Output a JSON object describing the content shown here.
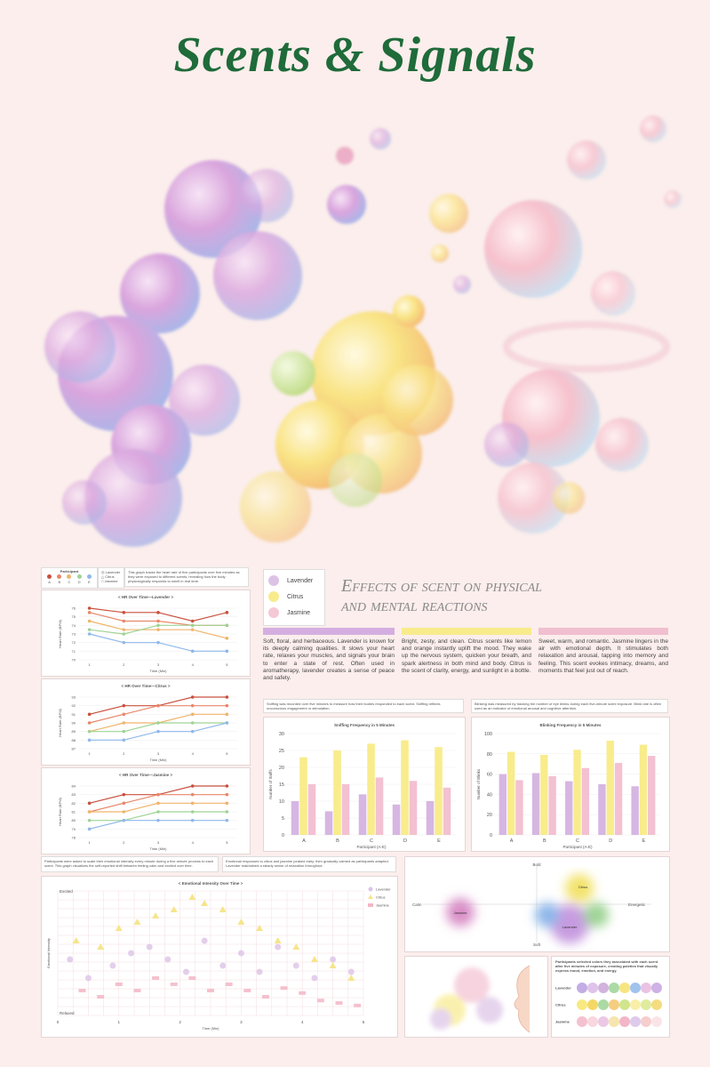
{
  "title": "Scents & Signals",
  "subtitle_line1": "Effects of scent on physical",
  "subtitle_line2": "and mental reactions",
  "scents": [
    {
      "name": "Lavender",
      "color": "#c9a6d8"
    },
    {
      "name": "Citrus",
      "color": "#f5e46a"
    },
    {
      "name": "Jasmine",
      "color": "#f2b6c8"
    }
  ],
  "hr_panel": {
    "participant_title": "Participant",
    "participants": [
      "A",
      "B",
      "C",
      "D",
      "E"
    ],
    "participant_colors": [
      "#c9503e",
      "#e8876a",
      "#f0b46c",
      "#9ed494",
      "#8fb8ea"
    ],
    "legend": [
      "Lavender",
      "Citrus",
      "Jasmine"
    ],
    "description": "This graph tracks the heart rate of five participants over five minutes as they were exposed to different scents, revealing how the body physiologically responds to smell in real time."
  },
  "descriptions": {
    "lavender": "Soft, floral, and herbaceous. Lavender is known for its deeply calming qualities. It slows your heart rate, relaxes your muscles, and signals your brain to enter a state of rest. Often used in aromatherapy, lavender creates a sense of peace and safety.",
    "citrus": "Bright, zesty, and clean. Citrus scents like lemon and orange instantly uplift the mood. They wake up the nervous system, quicken your breath, and spark alertness in both mind and body. Citrus is the scent of clarity, energy, and sunlight in a bottle.",
    "jasmine": "Sweet, warm, and romantic. Jasmine lingers in the air with emotional depth. It stimulates both relaxation and arousal, tapping into memory and feeling. This scent evokes intimacy, dreams, and moments that feel just out of reach."
  },
  "notes": {
    "sniff": "Sniffing was recorded over five minutes to measure how their bodies responded to each scent. Sniffing reflects unconscious engagement or stimulation.",
    "blink": "Blinking was measured by tracking the number of eye blinks during each five-minute scent exposure. Blink rate is often used as an indicator of emotional arousal and cognitive attention.",
    "emotion1": "Participants were asked to scale their emotional intensity every minute during a five-minute process to each scent. This graph visualizes the self-reported shift between feeling calm and excited over time.",
    "emotion2": "Emotional responses to citrus and jasmine peaked early, then gradually calmed as participants adapted. Lavender maintained a steady sense of relaxation throughout.",
    "color": "Participants selected colors they associated with each scent after five minutes of exposure, creating palettes that visually express mood, emotion, and energy."
  },
  "map_labels": {
    "bold": "Bold",
    "soft": "Soft",
    "calm": "Calm",
    "energetic": "Energetic",
    "citrus": "Citrus",
    "jasmine": "Jasmine",
    "lavender": "Lavender"
  },
  "palette_rows": [
    "Lavender",
    "Citrus",
    "Jasmine"
  ],
  "chart_data": [
    {
      "type": "line",
      "title": "< HR Over Time—Lavender >",
      "xlabel": "Time (Min)",
      "ylabel": "Heart Rate (BPM)",
      "x": [
        1,
        2,
        3,
        4,
        5
      ],
      "ylim": [
        70,
        76
      ],
      "yticks": [
        70,
        71,
        72,
        73,
        74,
        75,
        76
      ],
      "series": [
        {
          "name": "A",
          "values": [
            76,
            75.5,
            75.5,
            74.5,
            75.5
          ]
        },
        {
          "name": "B",
          "values": [
            75.5,
            74.5,
            74.5,
            74,
            74
          ]
        },
        {
          "name": "C",
          "values": [
            74.5,
            73.5,
            73.5,
            73.5,
            72.5
          ]
        },
        {
          "name": "D",
          "values": [
            73.5,
            73,
            74,
            74,
            74
          ]
        },
        {
          "name": "E",
          "values": [
            73,
            72,
            72,
            71,
            71
          ]
        }
      ]
    },
    {
      "type": "line",
      "title": "< HR Over Time—Citrus >",
      "xlabel": "Time (Min)",
      "ylabel": "Heart Rate (BPM)",
      "x": [
        1,
        2,
        3,
        4,
        5
      ],
      "ylim": [
        87,
        93
      ],
      "yticks": [
        87,
        88,
        89,
        90,
        91,
        92,
        93
      ],
      "series": [
        {
          "name": "A",
          "values": [
            91,
            92,
            92,
            93,
            93
          ]
        },
        {
          "name": "B",
          "values": [
            90,
            91,
            92,
            92,
            92
          ]
        },
        {
          "name": "C",
          "values": [
            89,
            90,
            90,
            91,
            91
          ]
        },
        {
          "name": "D",
          "values": [
            89,
            89,
            90,
            90,
            90
          ]
        },
        {
          "name": "E",
          "values": [
            88,
            88,
            89,
            89,
            90
          ]
        }
      ]
    },
    {
      "type": "line",
      "title": "< HR Over Time—Jasmine >",
      "xlabel": "Time (Min)",
      "ylabel": "Heart Rate (BPM)",
      "x": [
        1,
        2,
        3,
        4,
        5
      ],
      "ylim": [
        78,
        84
      ],
      "yticks": [
        78,
        79,
        80,
        81,
        82,
        83,
        84
      ],
      "series": [
        {
          "name": "A",
          "values": [
            82,
            83,
            83,
            84,
            84
          ]
        },
        {
          "name": "B",
          "values": [
            81,
            82,
            83,
            83,
            83
          ]
        },
        {
          "name": "C",
          "values": [
            81,
            81,
            82,
            82,
            82
          ]
        },
        {
          "name": "D",
          "values": [
            80,
            80,
            81,
            81,
            81
          ]
        },
        {
          "name": "E",
          "values": [
            79,
            80,
            80,
            80,
            80
          ]
        }
      ]
    },
    {
      "type": "bar",
      "title": "Sniffing Frequency in 5 Minutes",
      "xlabel": "Participant (A-E)",
      "ylabel": "Number of Sniffs",
      "categories": [
        "A",
        "B",
        "C",
        "D",
        "E"
      ],
      "ylim": [
        0,
        30
      ],
      "yticks": [
        0,
        5,
        10,
        15,
        20,
        25,
        30
      ],
      "series": [
        {
          "name": "Lavender",
          "values": [
            10,
            7,
            12,
            9,
            10
          ]
        },
        {
          "name": "Citrus",
          "values": [
            23,
            25,
            27,
            28,
            26
          ]
        },
        {
          "name": "Jasmine",
          "values": [
            15,
            15,
            17,
            16,
            14
          ]
        }
      ]
    },
    {
      "type": "bar",
      "title": "Blinking Frequency in 5 Minutes",
      "xlabel": "Participant (A-E)",
      "ylabel": "Number of Blinks",
      "categories": [
        "A",
        "B",
        "C",
        "D",
        "E"
      ],
      "ylim": [
        0,
        100
      ],
      "yticks": [
        0,
        20,
        40,
        60,
        80,
        100
      ],
      "series": [
        {
          "name": "Lavender",
          "values": [
            60,
            61,
            53,
            50,
            48
          ]
        },
        {
          "name": "Citrus",
          "values": [
            82,
            79,
            84,
            93,
            89
          ]
        },
        {
          "name": "Jasmine",
          "values": [
            54,
            58,
            66,
            71,
            78
          ]
        }
      ]
    },
    {
      "type": "scatter",
      "title": "< Emotional Intensity Over Time >",
      "xlabel": "Time (Min)",
      "ylabel": "Emotional Intensity",
      "xlim": [
        0,
        5
      ],
      "xticks": [
        0,
        1,
        2,
        3,
        4,
        5
      ],
      "ytop": "Excited",
      "ybottom": "Relaxed",
      "series": [
        {
          "name": "Lavender",
          "points": [
            [
              0.2,
              0.45
            ],
            [
              0.5,
              0.3
            ],
            [
              0.9,
              0.4
            ],
            [
              1.2,
              0.5
            ],
            [
              1.5,
              0.55
            ],
            [
              1.8,
              0.45
            ],
            [
              2.1,
              0.35
            ],
            [
              2.4,
              0.6
            ],
            [
              2.7,
              0.4
            ],
            [
              3.0,
              0.5
            ],
            [
              3.3,
              0.35
            ],
            [
              3.6,
              0.55
            ],
            [
              3.9,
              0.4
            ],
            [
              4.2,
              0.3
            ],
            [
              4.5,
              0.45
            ],
            [
              4.8,
              0.35
            ]
          ]
        },
        {
          "name": "Citrus",
          "points": [
            [
              0.3,
              0.6
            ],
            [
              0.7,
              0.55
            ],
            [
              1.0,
              0.7
            ],
            [
              1.3,
              0.75
            ],
            [
              1.6,
              0.8
            ],
            [
              1.9,
              0.85
            ],
            [
              2.2,
              0.95
            ],
            [
              2.4,
              0.9
            ],
            [
              2.7,
              0.85
            ],
            [
              3.0,
              0.75
            ],
            [
              3.3,
              0.7
            ],
            [
              3.6,
              0.6
            ],
            [
              3.9,
              0.55
            ],
            [
              4.2,
              0.45
            ],
            [
              4.5,
              0.4
            ],
            [
              4.8,
              0.3
            ]
          ]
        },
        {
          "name": "Jasmine",
          "points": [
            [
              0.4,
              0.2
            ],
            [
              0.7,
              0.15
            ],
            [
              1.0,
              0.25
            ],
            [
              1.3,
              0.2
            ],
            [
              1.6,
              0.3
            ],
            [
              1.9,
              0.25
            ],
            [
              2.2,
              0.3
            ],
            [
              2.5,
              0.2
            ],
            [
              2.8,
              0.25
            ],
            [
              3.1,
              0.2
            ],
            [
              3.4,
              0.15
            ],
            [
              3.7,
              0.22
            ],
            [
              4.0,
              0.18
            ],
            [
              4.3,
              0.12
            ],
            [
              4.6,
              0.1
            ],
            [
              4.9,
              0.08
            ]
          ]
        }
      ]
    }
  ]
}
